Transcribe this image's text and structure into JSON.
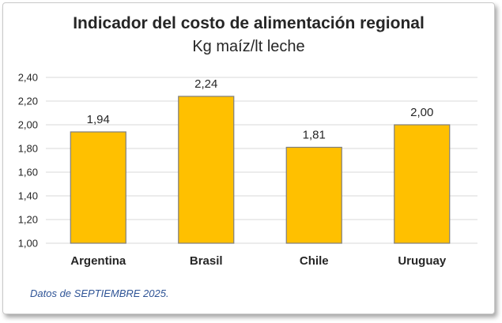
{
  "chart_data": {
    "type": "bar",
    "title": "Indicador del costo de alimentación regional",
    "subtitle": "Kg maíz/lt leche",
    "categories": [
      "Argentina",
      "Brasil",
      "Chile",
      "Uruguay"
    ],
    "values": [
      1.94,
      2.24,
      1.81,
      2.0
    ],
    "value_labels": [
      "1,94",
      "2,24",
      "1,81",
      "2,00"
    ],
    "xlabel": "",
    "ylabel": "",
    "ylim": [
      1.0,
      2.4
    ],
    "yticks": [
      1.0,
      1.2,
      1.4,
      1.6,
      1.8,
      2.0,
      2.2,
      2.4
    ],
    "ytick_labels": [
      "1,00",
      "1,20",
      "1,40",
      "1,60",
      "1,80",
      "2,00",
      "2,20",
      "2,40"
    ],
    "grid": true,
    "legend": "none",
    "bar_color": "#ffc000",
    "bar_edge_color": "#7f7f7f"
  },
  "footnote": "Datos de SEPTIEMBRE 2025."
}
